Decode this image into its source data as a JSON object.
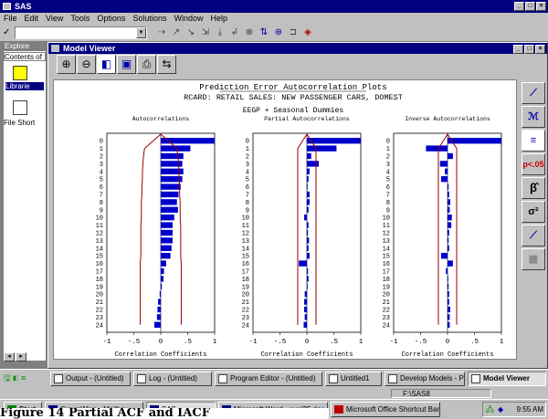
{
  "app": {
    "title": "SAS"
  },
  "menu": [
    "File",
    "Edit",
    "View",
    "Tools",
    "Options",
    "Solutions",
    "Window",
    "Help"
  ],
  "command_box": {
    "value": ""
  },
  "explorer": {
    "title": "Explore",
    "tab_label": "Contents of",
    "items": [
      {
        "label": "Librarie"
      },
      {
        "label": "File Short"
      }
    ]
  },
  "model_viewer": {
    "title": "Model Viewer",
    "plot_title": "Prediction Error Autocorrelation Plots",
    "plot_subtitle": "RCARD: RETAIL SALES: NEW PASSENGER CARS, DOMEST",
    "plot_model": "EEGP + Seasonal Dummies",
    "panels": [
      "Autocorrelations",
      "Partial Autocorrelations",
      "Inverse Autocorrelations"
    ],
    "xlabel": "Correlation Coefficients",
    "side_buttons": [
      "p<.05",
      "β̂",
      "σ²"
    ]
  },
  "chart_data": [
    {
      "type": "bar",
      "title": "Autocorrelations",
      "xlabel": "Correlation Coefficients",
      "xlim": [
        -1,
        1
      ],
      "x_ticks": [
        "-1",
        "-.5",
        "0",
        ".5",
        "1"
      ],
      "categories": [
        "0",
        "1",
        "2",
        "3",
        "4",
        "5",
        "6",
        "7",
        "8",
        "9",
        "10",
        "11",
        "12",
        "13",
        "14",
        "15",
        "16",
        "17",
        "18",
        "19",
        "20",
        "21",
        "22",
        "23",
        "24"
      ],
      "values": [
        1.0,
        0.55,
        0.42,
        0.4,
        0.42,
        0.4,
        0.37,
        0.33,
        0.3,
        0.32,
        0.25,
        0.22,
        0.22,
        0.22,
        0.2,
        0.18,
        0.1,
        0.06,
        0.05,
        0.02,
        -0.02,
        -0.05,
        -0.06,
        -0.07,
        -0.12
      ],
      "ci": [
        0.0,
        0.3,
        0.32,
        0.33,
        0.34,
        0.34,
        0.35,
        0.35,
        0.36,
        0.36,
        0.36,
        0.37,
        0.37,
        0.37,
        0.37,
        0.37,
        0.38,
        0.38,
        0.38,
        0.38,
        0.38,
        0.38,
        0.38,
        0.38,
        0.38
      ]
    },
    {
      "type": "bar",
      "title": "Partial Autocorrelations",
      "xlabel": "Correlation Coefficients",
      "xlim": [
        -1,
        1
      ],
      "x_ticks": [
        "-1",
        "-.5",
        "0",
        ".5",
        "1"
      ],
      "categories": [
        "0",
        "1",
        "2",
        "3",
        "4",
        "5",
        "6",
        "7",
        "8",
        "9",
        "10",
        "11",
        "12",
        "13",
        "14",
        "15",
        "16",
        "17",
        "18",
        "19",
        "20",
        "21",
        "22",
        "23",
        "24"
      ],
      "values": [
        1.0,
        0.55,
        0.08,
        0.22,
        0.05,
        0.03,
        0.0,
        0.05,
        0.05,
        0.03,
        -0.05,
        0.03,
        0.02,
        0.04,
        0.03,
        0.05,
        -0.15,
        0.02,
        0.03,
        0.0,
        -0.04,
        -0.05,
        -0.05,
        -0.04,
        -0.06
      ],
      "ci": [
        0.0,
        0.17,
        0.17,
        0.17,
        0.17,
        0.17,
        0.17,
        0.17,
        0.17,
        0.17,
        0.17,
        0.17,
        0.17,
        0.17,
        0.17,
        0.17,
        0.17,
        0.17,
        0.17,
        0.17,
        0.17,
        0.17,
        0.17,
        0.17,
        0.17
      ]
    },
    {
      "type": "bar",
      "title": "Inverse Autocorrelations",
      "xlabel": "Correlation Coefficients",
      "xlim": [
        -1,
        1
      ],
      "x_ticks": [
        "-1",
        "-.5",
        "0",
        ".5",
        "1"
      ],
      "categories": [
        "0",
        "1",
        "2",
        "3",
        "4",
        "5",
        "6",
        "7",
        "8",
        "9",
        "10",
        "11",
        "12",
        "13",
        "14",
        "15",
        "16",
        "17",
        "18",
        "19",
        "20",
        "21",
        "22",
        "23",
        "24"
      ],
      "values": [
        1.0,
        -0.4,
        0.1,
        -0.14,
        -0.05,
        -0.12,
        0.02,
        0.03,
        0.05,
        0.04,
        0.08,
        0.07,
        0.03,
        0.02,
        0.03,
        -0.12,
        0.1,
        -0.03,
        0.0,
        0.02,
        0.03,
        0.03,
        0.05,
        0.04,
        0.04
      ],
      "ci": [
        0.0,
        0.17,
        0.17,
        0.17,
        0.17,
        0.17,
        0.17,
        0.17,
        0.17,
        0.17,
        0.17,
        0.17,
        0.17,
        0.17,
        0.17,
        0.17,
        0.17,
        0.17,
        0.17,
        0.17,
        0.17,
        0.17,
        0.17,
        0.17,
        0.17
      ]
    }
  ],
  "sas_tasks": [
    "Output - (Untitled)",
    "Log - (Untitled)",
    "Program Editor - (Untitled)",
    "Untitled1",
    "Develop Models - Projec",
    "Model Viewer"
  ],
  "status_path": "F:\\SAS8",
  "windows_taskbar": {
    "start": "Start",
    "items": [
      "GroupWise - Mailbox",
      "SAS",
      "Microsoft Word - sugi25.doc",
      "Microsoft Office Shortcut Bar"
    ],
    "clock": "9:55 AM"
  },
  "caption_overlay": "Figure 14 Partial ACF and IACF",
  "colors": {
    "bar": "#0000cc",
    "ci_line": "#990000",
    "title_bar": "#000080"
  }
}
